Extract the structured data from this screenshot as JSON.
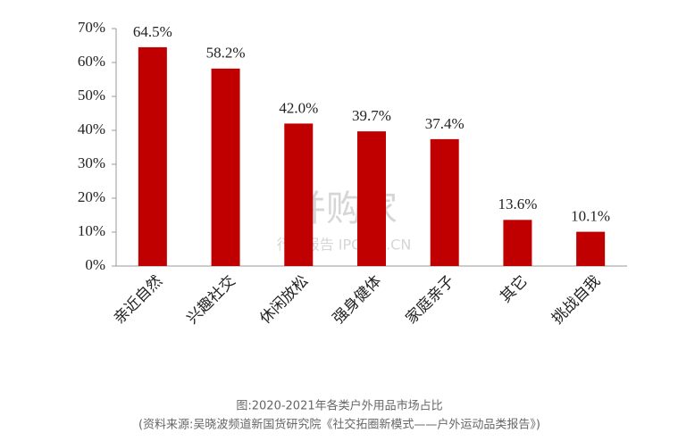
{
  "chart_data": {
    "type": "bar",
    "categories": [
      "亲近自然",
      "兴趣社交",
      "休闲放松",
      "强身健体",
      "家庭亲子",
      "其它",
      "挑战自我"
    ],
    "values": [
      64.5,
      58.2,
      42.0,
      39.7,
      37.4,
      13.6,
      10.1
    ],
    "value_labels": [
      "64.5%",
      "58.2%",
      "42.0%",
      "39.7%",
      "37.4%",
      "13.6%",
      "10.1%"
    ],
    "color": "#c00000",
    "ylim": [
      0,
      70
    ],
    "yticks": [
      {
        "value": 0,
        "label": "0%"
      },
      {
        "value": 10,
        "label": "10%"
      },
      {
        "value": 20,
        "label": "20%"
      },
      {
        "value": 30,
        "label": "30%"
      },
      {
        "value": 40,
        "label": "40%"
      },
      {
        "value": 50,
        "label": "50%"
      },
      {
        "value": 60,
        "label": "60%"
      },
      {
        "value": 70,
        "label": "70%"
      }
    ],
    "grid": false,
    "caption": [
      "图:2020-2021年各类户外用品市场占比",
      "(资料来源:吴晓波频道新国货研究院《社交拓圈新模式——户外运动品类报告》)"
    ],
    "watermark": [
      "并购家",
      "行业报告 IPOIPO.CN"
    ]
  }
}
